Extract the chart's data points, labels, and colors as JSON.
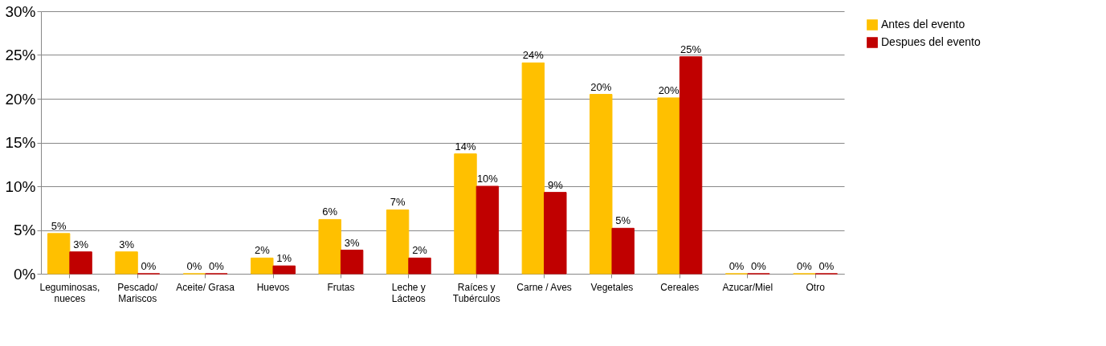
{
  "chart_data": {
    "type": "bar",
    "categories": [
      "Leguminosas,\nnueces",
      "Pescado/\nMariscos",
      "Aceite/ Grasa",
      "Huevos",
      "Frutas",
      "Leche y\nLácteos",
      "Raíces y\nTubérculos",
      "Carne / Aves",
      "Vegetales",
      "Cereales",
      "Azucar/Miel",
      "Otro"
    ],
    "series": [
      {
        "name": "Antes del evento",
        "color": "#ffc000",
        "values": [
          4.6,
          2.5,
          0,
          1.8,
          6.2,
          7.3,
          13.7,
          24.1,
          20.5,
          20.1,
          0,
          0
        ],
        "value_labels": [
          "5%",
          "3%",
          "0%",
          "2%",
          "6%",
          "7%",
          "14%",
          "24%",
          "20%",
          "20%",
          "0%",
          "0%"
        ]
      },
      {
        "name": "Despues del evento",
        "color": "#c00000",
        "values": [
          2.5,
          0,
          0,
          0.9,
          2.7,
          1.8,
          10.0,
          9.3,
          5.2,
          24.8,
          0,
          0
        ],
        "value_labels": [
          "3%",
          "0%",
          "0%",
          "1%",
          "3%",
          "2%",
          "10%",
          "9%",
          "5%",
          "25%",
          "0%",
          "0%"
        ]
      }
    ],
    "ylim": [
      0,
      30
    ],
    "yticks": [
      {
        "value": 0,
        "label": "0%"
      },
      {
        "value": 5,
        "label": "5%"
      },
      {
        "value": 10,
        "label": "10%"
      },
      {
        "value": 15,
        "label": "15%"
      },
      {
        "value": 20,
        "label": "20%"
      },
      {
        "value": 25,
        "label": "25%"
      },
      {
        "value": 30,
        "label": "30%"
      }
    ],
    "grid": "y",
    "legend": "right"
  }
}
